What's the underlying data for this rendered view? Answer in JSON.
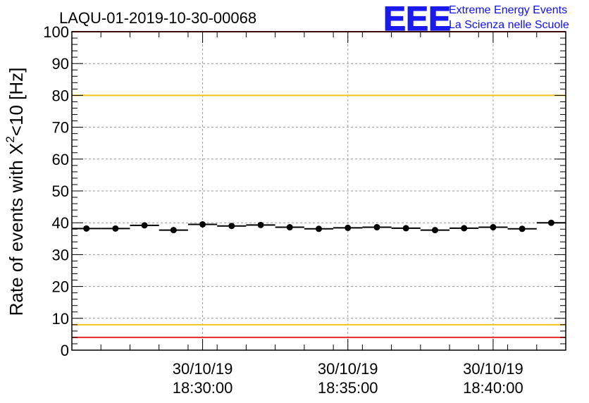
{
  "chart_data": {
    "type": "scatter",
    "title": "LAQU-01-2019-10-30-00068",
    "ylabel": "Rate of events with X",
    "ylabel_sup": "2",
    "ylabel_rest": "<10 [Hz]",
    "xlabel": "",
    "ylim": [
      0,
      100
    ],
    "xlim": [
      0,
      17
    ],
    "yticks": [
      0,
      10,
      20,
      30,
      40,
      50,
      60,
      70,
      80,
      90,
      100
    ],
    "xticks": [
      {
        "x": 4.5,
        "date": "30/10/19",
        "time": "18:30:00"
      },
      {
        "x": 9.5,
        "date": "30/10/19",
        "time": "18:35:00"
      },
      {
        "x": 14.5,
        "date": "30/10/19",
        "time": "18:40:00"
      }
    ],
    "series": [
      {
        "name": "rate",
        "x": [
          0.5,
          1.5,
          2.5,
          3.5,
          4.5,
          5.5,
          6.5,
          7.5,
          8.5,
          9.5,
          10.5,
          11.5,
          12.5,
          13.5,
          14.5,
          15.5,
          16.5
        ],
        "values": [
          38.2,
          38.2,
          39.2,
          37.7,
          39.5,
          39.0,
          39.3,
          38.6,
          38.1,
          38.4,
          38.6,
          38.3,
          37.7,
          38.3,
          38.6,
          38.1,
          40.0
        ],
        "bin_width": 1
      }
    ],
    "reference_lines": [
      {
        "name": "upper-red-limit",
        "y": 100,
        "color": "#e8262a"
      },
      {
        "name": "upper-yellow-limit",
        "y": 80,
        "color": "#f2c21a"
      },
      {
        "name": "lower-yellow-limit",
        "y": 8,
        "color": "#f2c21a"
      },
      {
        "name": "lower-red-limit",
        "y": 4,
        "color": "#e8262a"
      }
    ],
    "grid": true
  },
  "logo": {
    "mark": "EEE",
    "line1": "Extreme Energy Events",
    "line2": "La Scienza nelle Scuole",
    "color": "#1a1aee"
  }
}
